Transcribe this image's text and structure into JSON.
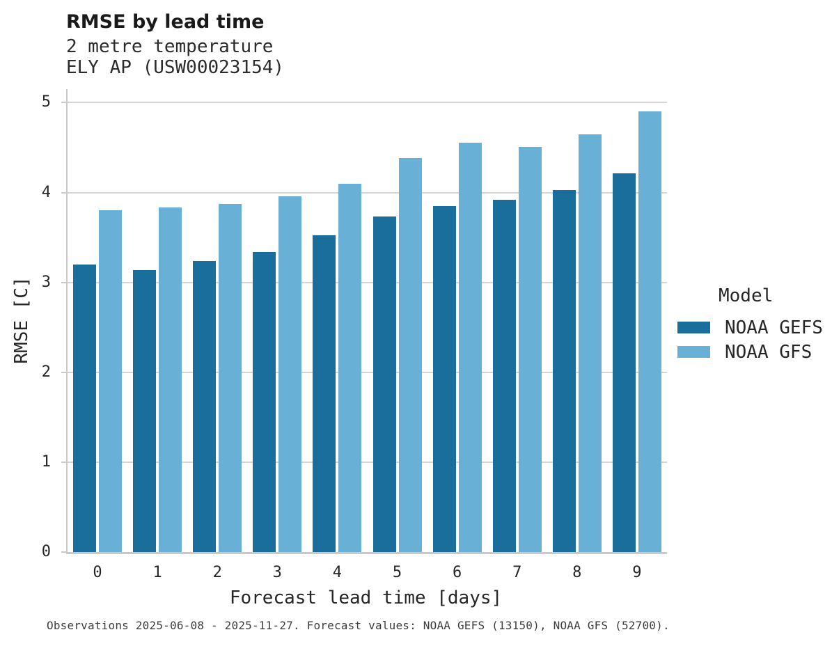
{
  "chart_data": {
    "type": "bar",
    "title": "RMSE by lead time",
    "subtitle_lines": [
      "2 metre temperature",
      "ELY AP (USW00023154)"
    ],
    "categories": [
      "0",
      "1",
      "2",
      "3",
      "4",
      "5",
      "6",
      "7",
      "8",
      "9"
    ],
    "series": [
      {
        "name": "NOAA GEFS",
        "color": "#1a6e9c",
        "values": [
          3.2,
          3.14,
          3.24,
          3.34,
          3.52,
          3.73,
          3.85,
          3.92,
          4.03,
          4.21
        ]
      },
      {
        "name": "NOAA GFS",
        "color": "#69b0d6",
        "values": [
          3.8,
          3.83,
          3.87,
          3.96,
          4.1,
          4.38,
          4.55,
          4.51,
          4.65,
          4.9
        ]
      }
    ],
    "xlabel": "Forecast lead time [days]",
    "ylabel": "RMSE [C]",
    "ylim": [
      0,
      5.15
    ],
    "yticks": [
      0,
      1,
      2,
      3,
      4,
      5
    ],
    "grid": "horizontal",
    "legend": {
      "title": "Model",
      "position": "right-center"
    }
  },
  "footer": {
    "caption": "Observations 2025-06-08 - 2025-11-27. Forecast values: NOAA GEFS (13150), NOAA GFS (52700)."
  },
  "colors": {
    "background": "#ffffff",
    "gridline": "#d4d4d4",
    "spine": "#c9c9c9",
    "text": "#262626"
  }
}
